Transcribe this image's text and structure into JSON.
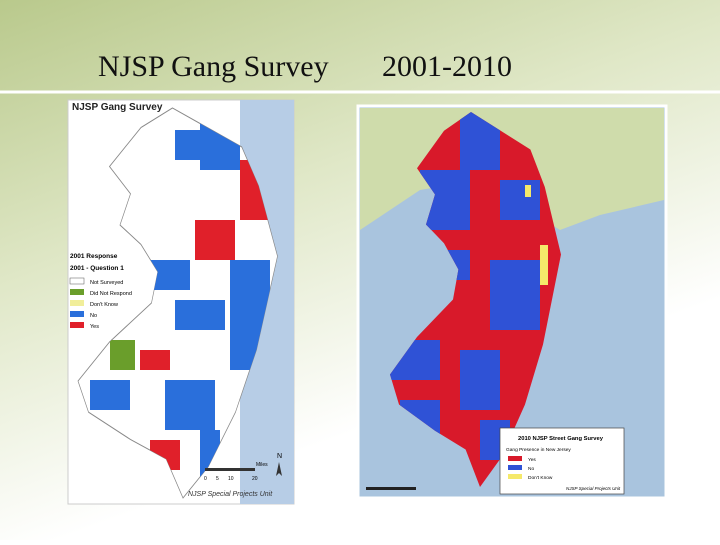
{
  "title": "NJSP Gang Survey",
  "title_years": "2001-2010",
  "maps": [
    {
      "title": "NJSP Gang Survey",
      "legend_title": "2001 Response",
      "legend_subtitle": "2001 - Question 1",
      "legend_items": [
        "Not Surveyed",
        "Did Not Respond",
        "Don't Know",
        "No",
        "Yes"
      ],
      "scale_labels": [
        "0",
        "5",
        "10",
        "20"
      ],
      "scale_unit": "Miles",
      "north": "N",
      "credit": "NJSP Special Projects Unit"
    },
    {
      "legend_title": "2010 NJSP Street Gang Survey",
      "legend_subtitle": "Gang Presence in New Jersey",
      "legend_items": [
        "Yes",
        "No",
        "Don't Know"
      ],
      "credit": "NJSP Special Projects Unit"
    }
  ]
}
